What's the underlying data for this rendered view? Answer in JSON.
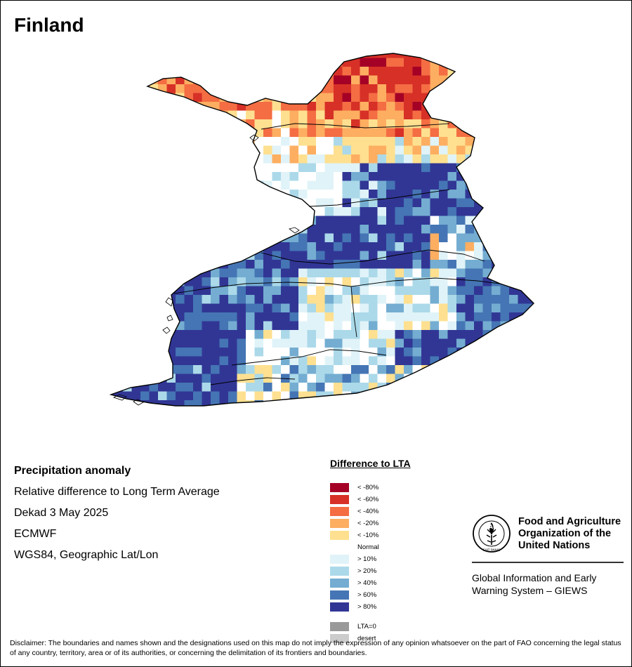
{
  "title": "Finland",
  "info": {
    "heading": "Precipitation anomaly",
    "subtitle": "Relative difference to Long Term Average",
    "period": "Dekad 3 May 2025",
    "source": "ECMWF",
    "projection": "WGS84, Geographic Lat/Lon"
  },
  "legend": {
    "title": "Difference to LTA",
    "items": [
      {
        "label": "< -80%",
        "color": "#a50026"
      },
      {
        "label": "< -60%",
        "color": "#d73027"
      },
      {
        "label": "< -40%",
        "color": "#f46d43"
      },
      {
        "label": "< -20%",
        "color": "#fdae61"
      },
      {
        "label": "< -10%",
        "color": "#fee090"
      },
      {
        "label": "Normal",
        "color": "#ffffff"
      },
      {
        "label": "> 10%",
        "color": "#e0f3f8"
      },
      {
        "label": "> 20%",
        "color": "#abd9e9"
      },
      {
        "label": "> 40%",
        "color": "#74add1"
      },
      {
        "label": "> 60%",
        "color": "#4575b4"
      },
      {
        "label": "> 80%",
        "color": "#313695"
      },
      {
        "label": "LTA=0",
        "color": "#999999"
      },
      {
        "label": "desert",
        "color": "#cccccc"
      }
    ]
  },
  "org": {
    "logo_text": "FAO",
    "logo_motto": "FIAT PANIS",
    "name": "Food and Agriculture Organization of the United Nations",
    "system": "Global Information and Early Warning System – GIEWS"
  },
  "disclaimer": "Disclaimer: The boundaries and names shown and the designations used on this map do not imply the expression of any opinion whatsoever on the part of FAO concerning the legal status of any country, territory, area or of its authorities, or concerning the delimitation of its frontiers and boundaries."
}
